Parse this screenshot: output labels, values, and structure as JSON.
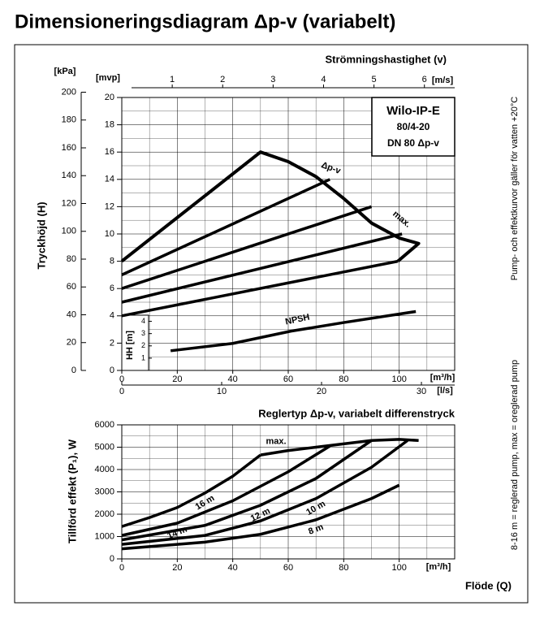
{
  "chart_data": [
    {
      "type": "line",
      "title": "Dimensioneringsdiagram Δp-v (variabelt)",
      "box_lines": [
        "Wilo-IP-E",
        "80/4-20",
        "DN 80  Δp-v"
      ],
      "note": "Pump- och effektkurvor gäller för vatten +20°C",
      "y_label": "Tryckhöjd (H)",
      "y_unit": "[mvp]",
      "ylim": [
        0,
        20
      ],
      "yticks": [
        0,
        2,
        4,
        6,
        8,
        10,
        12,
        14,
        16,
        18,
        20
      ],
      "y2_unit": "[kPa]",
      "y2lim": [
        0,
        196.2
      ],
      "y2ticks": [
        0,
        20,
        40,
        60,
        80,
        100,
        120,
        140,
        160,
        180,
        200
      ],
      "y3_label": "HH [m]",
      "y3lim": [
        0,
        4.5
      ],
      "y3ticks": [
        1,
        2,
        3,
        4
      ],
      "x_unit": "[m³/h]",
      "xlim": [
        0,
        120
      ],
      "xticks": [
        0,
        20,
        40,
        60,
        80,
        100
      ],
      "x2_unit": "[l/s]",
      "x2lim": [
        0,
        33.33
      ],
      "x2ticks": [
        0,
        10,
        20,
        30
      ],
      "x3_label": "Strömningshastighet (v)",
      "x3_unit": "[m/s]",
      "x3lim": [
        0,
        6.6
      ],
      "x3ticks": [
        1,
        2,
        3,
        4,
        5,
        6
      ],
      "grid": true,
      "annotations": [
        "Δp-v",
        "max."
      ],
      "series": [
        {
          "color": "#000",
          "x": [
            0,
            50,
            60,
            70,
            80,
            90,
            100,
            107,
            99.5
          ],
          "values": [
            8,
            16,
            15.3,
            14.2,
            12.6,
            10.8,
            9.7,
            9.3,
            8.0
          ]
        },
        {
          "color": "#000",
          "x": [
            0,
            75
          ],
          "values": [
            7,
            14
          ]
        },
        {
          "color": "#000",
          "x": [
            0,
            90
          ],
          "values": [
            6,
            12
          ]
        },
        {
          "color": "#000",
          "x": [
            0,
            101
          ],
          "values": [
            5,
            10
          ]
        },
        {
          "color": "#000",
          "x": [
            0,
            99.5
          ],
          "values": [
            4,
            8
          ]
        },
        {
          "name": "NPSH",
          "color": "#000",
          "axis": "y3",
          "x": [
            17.6,
            40,
            61,
            80,
            106
          ],
          "values": [
            1.6,
            2.2,
            3.2,
            3.9,
            4.8
          ]
        }
      ]
    },
    {
      "type": "line",
      "title": "Reglertyp  Δp-v, variabelt differenstryck",
      "note": "8-16 m = reglerad pump, max = oreglerad pump",
      "y_label": "Tillförd effekt (P₁), W",
      "ylim": [
        0,
        6000
      ],
      "yticks": [
        0,
        1000,
        2000,
        3000,
        4000,
        5000,
        6000
      ],
      "x_label": "Flöde (Q)",
      "x_unit": "[m³/h]",
      "xlim": [
        0,
        120
      ],
      "xticks": [
        0,
        20,
        40,
        60,
        80,
        100
      ],
      "grid": true,
      "series": [
        {
          "name": "max.",
          "color": "#000",
          "x": [
            50,
            60,
            70,
            80,
            90,
            100,
            107
          ],
          "values": [
            4650,
            4850,
            5000,
            5150,
            5300,
            5350,
            5300
          ]
        },
        {
          "name": "16 m",
          "color": "#000",
          "x": [
            0,
            10,
            20,
            30,
            40,
            50
          ],
          "values": [
            1450,
            1850,
            2300,
            2950,
            3700,
            4650
          ]
        },
        {
          "name": "14 m",
          "color": "#000",
          "x": [
            0,
            20,
            40,
            60,
            75
          ],
          "values": [
            1050,
            1600,
            2600,
            3900,
            5050
          ]
        },
        {
          "name": "12 m",
          "color": "#000",
          "x": [
            0,
            30,
            50,
            70,
            90
          ],
          "values": [
            850,
            1500,
            2400,
            3600,
            5300
          ]
        },
        {
          "name": "10 m",
          "color": "#000",
          "x": [
            0,
            30,
            50,
            70,
            90,
            103
          ],
          "values": [
            650,
            1050,
            1700,
            2700,
            4100,
            5300
          ]
        },
        {
          "name": "8 m",
          "color": "#000",
          "x": [
            0,
            30,
            50,
            70,
            90,
            100
          ],
          "values": [
            450,
            750,
            1100,
            1750,
            2700,
            3300
          ]
        }
      ]
    }
  ]
}
